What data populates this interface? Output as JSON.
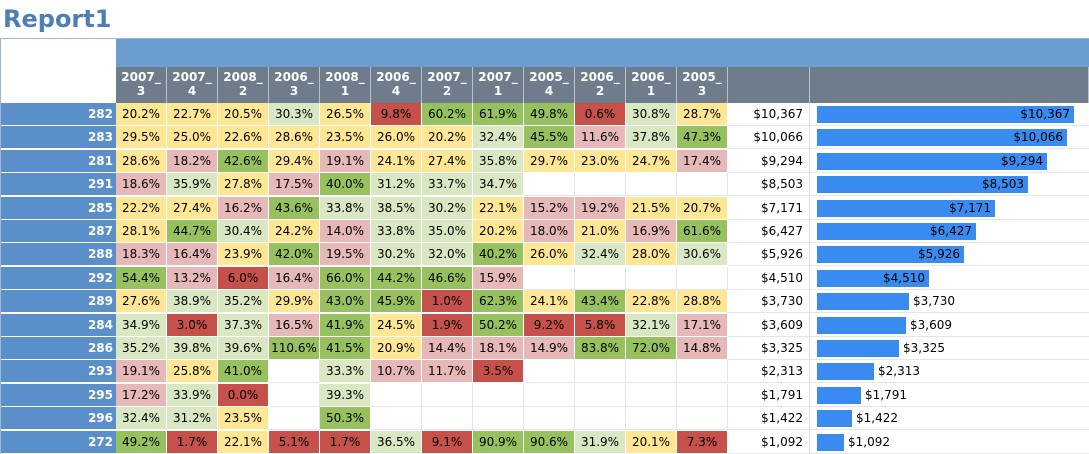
{
  "title": "Report1",
  "columns": [
    "2007_|3",
    "2007_|4",
    "2008_|2",
    "2006_|3",
    "2008_|1",
    "2006_|4",
    "2007_|2",
    "2007_|1",
    "2005_|4",
    "2006_|2",
    "2006_|1",
    "2005_|3"
  ],
  "colors": {
    "red": "#c5514a",
    "pink": "#e6b8b7",
    "yellow": "#fde795",
    "lightgreen": "#d9e7c3",
    "green": "#97c15f",
    "bar": "#3a8bef",
    "rowhead": "#5b8fc9",
    "colhead": "#6e7c8c",
    "band": "#6b9ecf"
  },
  "rows": [
    {
      "id": "282",
      "cells": [
        "20.2%|yellow",
        "22.7%|yellow",
        "20.5%|yellow",
        "30.3%|lightgreen",
        "26.5%|yellow",
        "9.8%|red",
        "60.2%|green",
        "61.9%|green",
        "49.8%|green",
        "0.6%|red",
        "30.8%|lightgreen",
        "28.7%|yellow"
      ],
      "total": "$10,367",
      "bar_value": 10367
    },
    {
      "id": "283",
      "cells": [
        "29.5%|yellow",
        "25.0%|yellow",
        "22.6%|yellow",
        "28.6%|yellow",
        "23.5%|yellow",
        "26.0%|yellow",
        "20.2%|yellow",
        "32.4%|lightgreen",
        "45.5%|green",
        "11.6%|pink",
        "37.8%|lightgreen",
        "47.3%|green"
      ],
      "total": "$10,066",
      "bar_value": 10066
    },
    {
      "id": "281",
      "cells": [
        "28.6%|yellow",
        "18.2%|pink",
        "42.6%|green",
        "29.4%|yellow",
        "19.1%|pink",
        "24.1%|yellow",
        "27.4%|yellow",
        "35.8%|lightgreen",
        "29.7%|yellow",
        "23.0%|yellow",
        "24.7%|yellow",
        "17.4%|pink"
      ],
      "total": "$9,294",
      "bar_value": 9294
    },
    {
      "id": "291",
      "cells": [
        "18.6%|pink",
        "35.9%|lightgreen",
        "27.8%|yellow",
        "17.5%|pink",
        "40.0%|green",
        "31.2%|lightgreen",
        "33.7%|lightgreen",
        "34.7%|lightgreen",
        "|empty",
        "|empty",
        "|empty",
        "|empty"
      ],
      "total": "$8,503",
      "bar_value": 8503
    },
    {
      "id": "285",
      "cells": [
        "22.2%|yellow",
        "27.4%|yellow",
        "16.2%|pink",
        "43.6%|green",
        "33.8%|lightgreen",
        "38.5%|lightgreen",
        "30.2%|lightgreen",
        "22.1%|yellow",
        "15.2%|pink",
        "19.2%|pink",
        "21.5%|yellow",
        "20.7%|yellow"
      ],
      "total": "$7,171",
      "bar_value": 7171
    },
    {
      "id": "287",
      "cells": [
        "28.1%|yellow",
        "44.7%|green",
        "30.4%|lightgreen",
        "24.2%|yellow",
        "14.0%|pink",
        "33.8%|lightgreen",
        "35.0%|lightgreen",
        "20.2%|yellow",
        "18.0%|pink",
        "21.0%|yellow",
        "16.9%|pink",
        "61.6%|green"
      ],
      "total": "$6,427",
      "bar_value": 6427
    },
    {
      "id": "288",
      "cells": [
        "18.3%|pink",
        "16.4%|pink",
        "23.9%|yellow",
        "42.0%|green",
        "19.5%|pink",
        "30.2%|lightgreen",
        "32.0%|lightgreen",
        "40.2%|green",
        "26.0%|yellow",
        "32.4%|lightgreen",
        "28.0%|yellow",
        "30.6%|lightgreen"
      ],
      "total": "$5,926",
      "bar_value": 5926
    },
    {
      "id": "292",
      "cells": [
        "54.4%|green",
        "13.2%|pink",
        "6.0%|red",
        "16.4%|pink",
        "66.0%|green",
        "44.2%|green",
        "46.6%|green",
        "15.9%|pink",
        "|empty",
        "|empty",
        "|empty",
        "|empty"
      ],
      "total": "$4,510",
      "bar_value": 4510
    },
    {
      "id": "289",
      "cells": [
        "27.6%|yellow",
        "38.9%|lightgreen",
        "35.2%|lightgreen",
        "29.9%|yellow",
        "43.0%|green",
        "45.9%|green",
        "1.0%|red",
        "62.3%|green",
        "24.1%|yellow",
        "43.4%|green",
        "22.8%|yellow",
        "28.8%|yellow"
      ],
      "total": "$3,730",
      "bar_value": 3730
    },
    {
      "id": "284",
      "cells": [
        "34.9%|lightgreen",
        "3.0%|red",
        "37.3%|lightgreen",
        "16.5%|pink",
        "41.9%|green",
        "24.5%|yellow",
        "1.9%|red",
        "50.2%|green",
        "9.2%|red",
        "5.8%|red",
        "32.1%|lightgreen",
        "17.1%|pink"
      ],
      "total": "$3,609",
      "bar_value": 3609
    },
    {
      "id": "286",
      "cells": [
        "35.2%|lightgreen",
        "39.8%|lightgreen",
        "39.6%|lightgreen",
        "110.6%|green",
        "41.5%|green",
        "20.9%|yellow",
        "14.4%|pink",
        "18.1%|pink",
        "14.9%|pink",
        "83.8%|green",
        "72.0%|green",
        "14.8%|pink"
      ],
      "total": "$3,325",
      "bar_value": 3325
    },
    {
      "id": "293",
      "cells": [
        "19.1%|pink",
        "25.8%|yellow",
        "41.0%|green",
        "|empty",
        "33.3%|lightgreen",
        "10.7%|pink",
        "11.7%|pink",
        "3.5%|red",
        "|empty",
        "|empty",
        "|empty",
        "|empty"
      ],
      "total": "$2,313",
      "bar_value": 2313
    },
    {
      "id": "295",
      "cells": [
        "17.2%|pink",
        "33.9%|lightgreen",
        "0.0%|red",
        "|empty",
        "39.3%|lightgreen",
        "|empty",
        "|empty",
        "|empty",
        "|empty",
        "|empty",
        "|empty",
        "|empty"
      ],
      "total": "$1,791",
      "bar_value": 1791
    },
    {
      "id": "296",
      "cells": [
        "32.4%|lightgreen",
        "31.2%|lightgreen",
        "23.5%|yellow",
        "|empty",
        "50.3%|green",
        "|empty",
        "|empty",
        "|empty",
        "|empty",
        "|empty",
        "|empty",
        "|empty"
      ],
      "total": "$1,422",
      "bar_value": 1422
    },
    {
      "id": "272",
      "cells": [
        "49.2%|green",
        "1.7%|red",
        "22.1%|yellow",
        "5.1%|red",
        "1.7%|red",
        "36.5%|lightgreen",
        "9.1%|red",
        "90.9%|green",
        "90.6%|green",
        "31.9%|lightgreen",
        "20.1%|yellow",
        "7.3%|red"
      ],
      "total": "$1,092",
      "bar_value": 1092
    }
  ],
  "bar_max": 10367
}
